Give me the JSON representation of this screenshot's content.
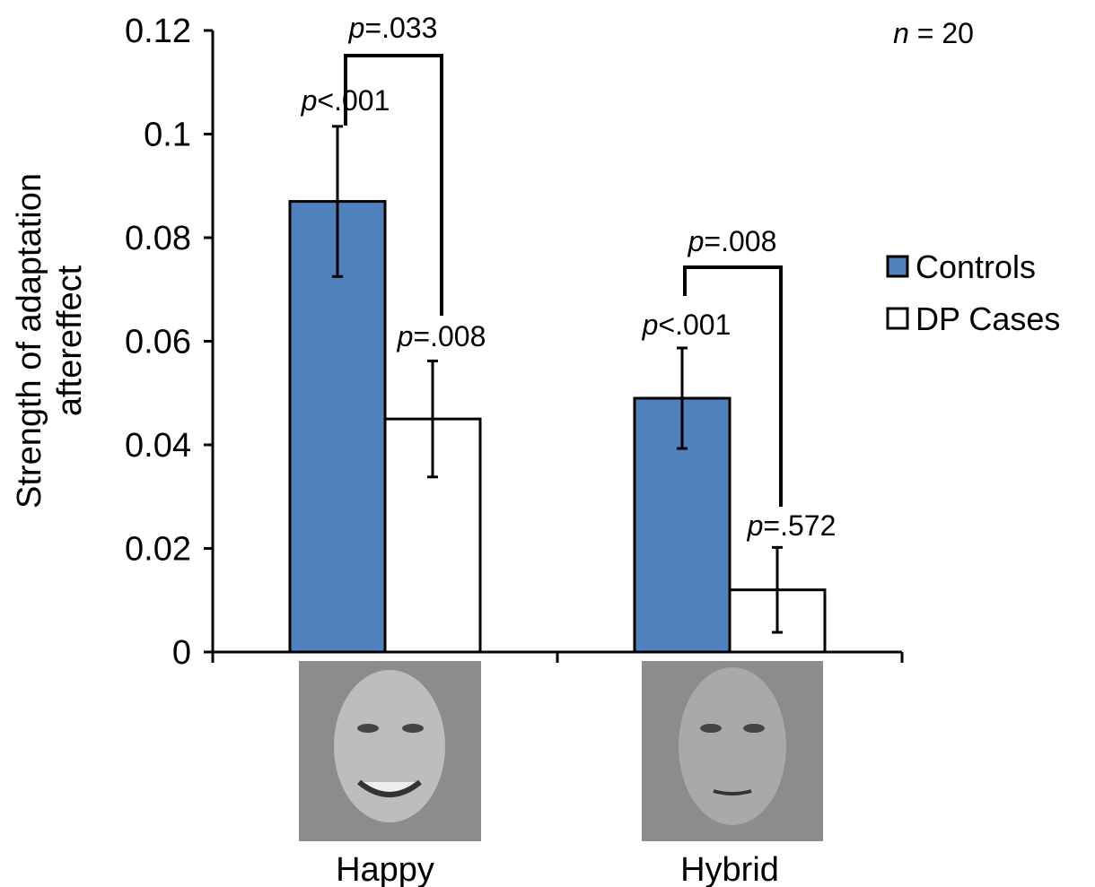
{
  "chart_data": {
    "type": "bar",
    "ylabel": [
      "Strength of adaptation",
      "aftereffect"
    ],
    "categories": [
      "Happy",
      "Hybrid"
    ],
    "series": [
      {
        "name": "Controls",
        "color": "#4f81bd",
        "values": [
          0.087,
          0.049
        ],
        "errors": [
          0.0145,
          0.0097
        ]
      },
      {
        "name": "DP Cases",
        "color": "#ffffff",
        "values": [
          0.045,
          0.012
        ],
        "errors": [
          0.0112,
          0.0082
        ]
      }
    ],
    "ylim": [
      0,
      0.12
    ],
    "yticks": [
      0,
      0.02,
      0.04,
      0.06,
      0.08,
      0.1,
      0.12
    ],
    "annotations": [
      {
        "italic": "p",
        "text": "<.001"
      },
      {
        "italic": "p",
        "text": "=.008"
      },
      {
        "italic": "p",
        "text": "=.033"
      },
      {
        "italic": "p",
        "text": "<.001"
      },
      {
        "italic": "p",
        "text": "=.572"
      },
      {
        "italic": "p",
        "text": "=.008"
      },
      {
        "italic": "n",
        "text": " = 20"
      }
    ]
  }
}
